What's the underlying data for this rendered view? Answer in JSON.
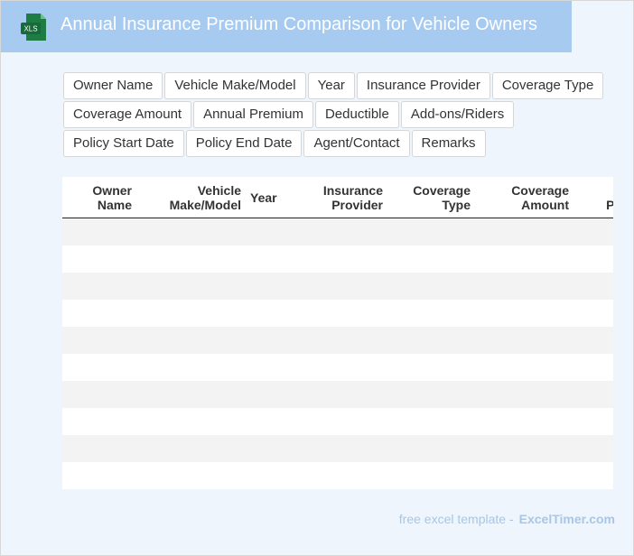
{
  "header": {
    "title": "Annual Insurance Premium Comparison for Vehicle Owners",
    "icon_label": "XLS"
  },
  "tags": [
    "Owner Name",
    "Vehicle Make/Model",
    "Year",
    "Insurance Provider",
    "Coverage Type",
    "Coverage Amount",
    "Annual Premium",
    "Deductible",
    "Add-ons/Riders",
    "Policy Start Date",
    "Policy End Date",
    "Agent/Contact",
    "Remarks"
  ],
  "table": {
    "columns": [
      "Owner Name",
      "Vehicle Make/Model",
      "Year",
      "Insurance Provider",
      "Coverage Type",
      "Coverage Amount",
      "Annual Premium"
    ]
  },
  "footer": {
    "text": "free excel template -",
    "brand": "ExcelTimer.com"
  }
}
